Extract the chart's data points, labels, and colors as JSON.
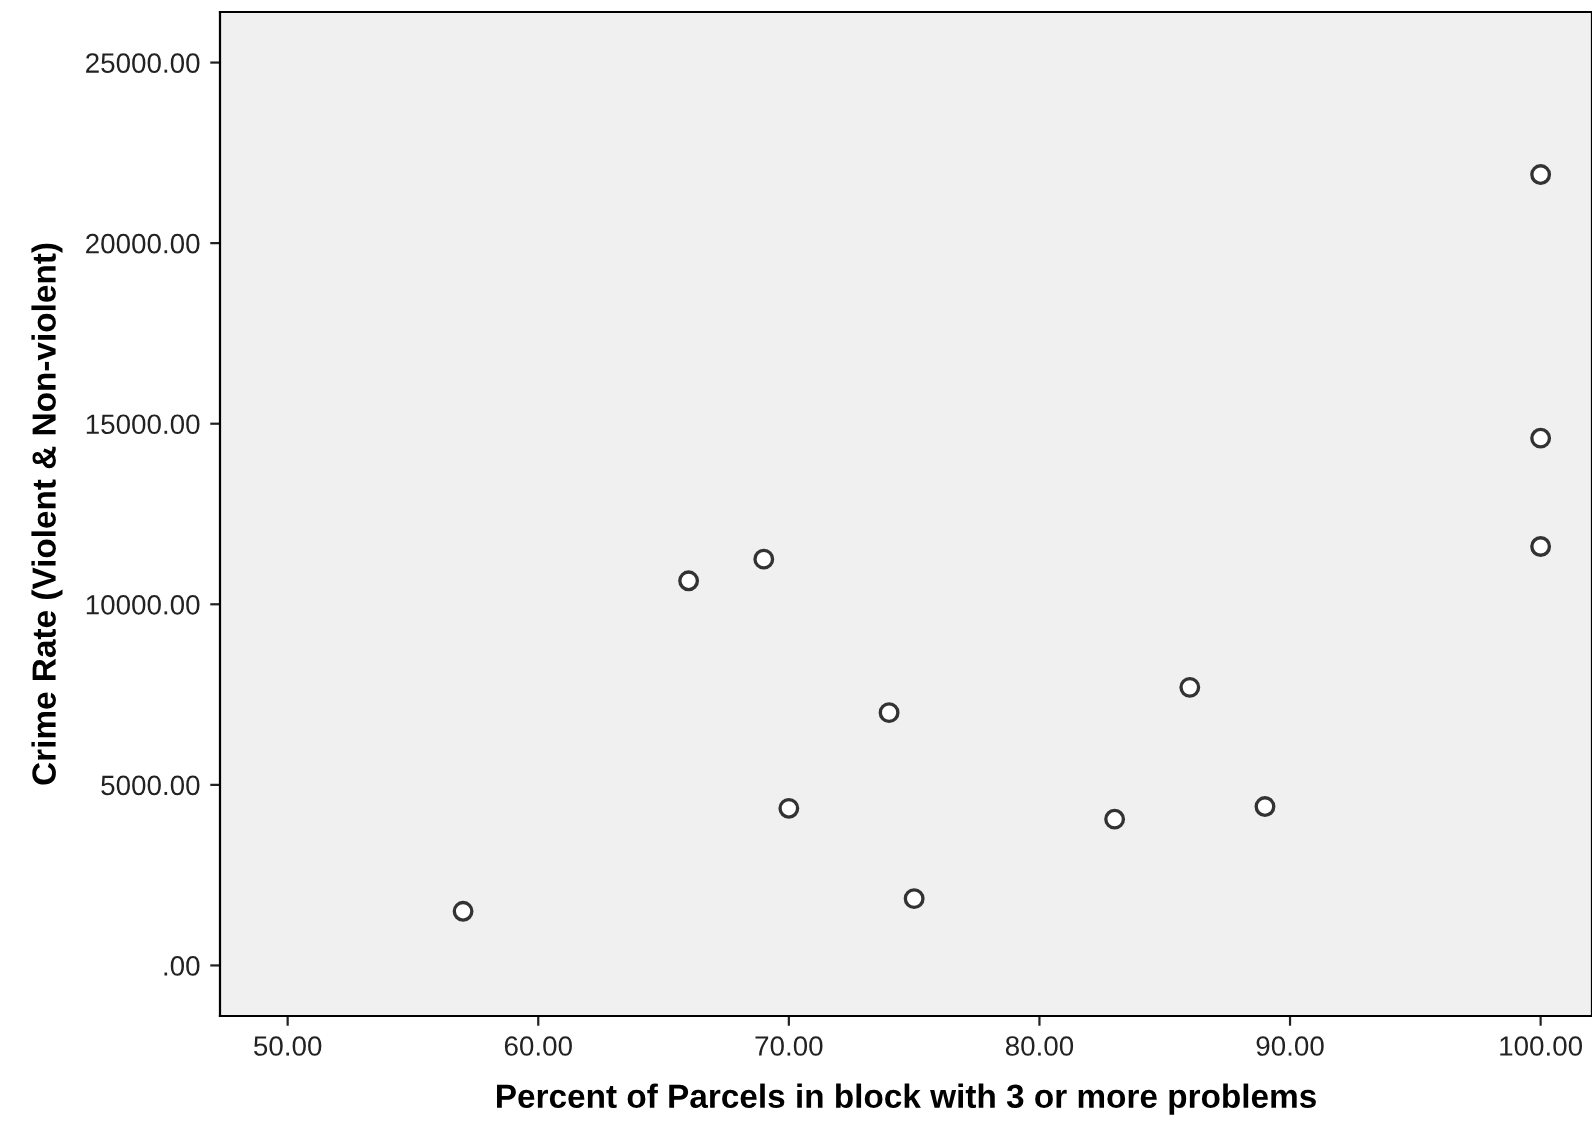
{
  "chart_data": {
    "type": "scatter",
    "xlabel": "Percent of Parcels in block with 3 or more problems",
    "ylabel": "Crime Rate (Violent & Non-violent)",
    "x": [
      57,
      66,
      69,
      70,
      74,
      75,
      83,
      86,
      89,
      100,
      100,
      100
    ],
    "values": [
      1500,
      10650,
      11250,
      4350,
      7000,
      1850,
      4050,
      7700,
      4400,
      21900,
      14600,
      11600
    ],
    "color": "#ffffff",
    "marker": "circle",
    "xlim": [
      47.3,
      102.05
    ],
    "ylim": [
      -1400,
      26400
    ],
    "xticks": [
      {
        "value": 50,
        "label": "50.00"
      },
      {
        "value": 60,
        "label": "60.00"
      },
      {
        "value": 70,
        "label": "70.00"
      },
      {
        "value": 80,
        "label": "80.00"
      },
      {
        "value": 90,
        "label": "90.00"
      },
      {
        "value": 100,
        "label": "100.00"
      }
    ],
    "yticks": [
      {
        "value": 0,
        "label": ".00"
      },
      {
        "value": 5000,
        "label": "5000.00"
      },
      {
        "value": 10000,
        "label": "10000.00"
      },
      {
        "value": 15000,
        "label": "15000.00"
      },
      {
        "value": 20000,
        "label": "20000.00"
      },
      {
        "value": 25000,
        "label": "25000.00"
      }
    ],
    "grid": false
  }
}
